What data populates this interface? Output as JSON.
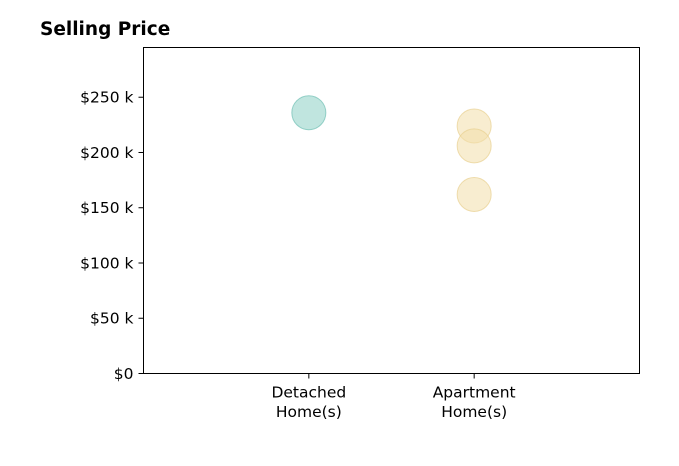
{
  "chart_data": {
    "type": "scatter",
    "title": "Selling Price",
    "xlabel": "",
    "ylabel": "",
    "categories": [
      [
        "Detached",
        "Home(s)"
      ],
      [
        "Apartment",
        "Home(s)"
      ]
    ],
    "xlim": [
      0,
      3
    ],
    "ylim": [
      0,
      295000
    ],
    "yticks": [
      0,
      50000,
      100000,
      150000,
      200000,
      250000
    ],
    "ytick_labels": [
      "$0",
      "$50 k",
      "$100 k",
      "$150 k",
      "$200 k",
      "$250 k"
    ],
    "grid": false,
    "legend": "none",
    "series": [
      {
        "category_index": 0,
        "color": "#8ccfc5",
        "stroke": "#6fbfb4",
        "points": [
          236000
        ]
      },
      {
        "category_index": 1,
        "color": "#f2dfaa",
        "stroke": "#e8d090",
        "points": [
          224000,
          206000,
          162000
        ]
      }
    ]
  }
}
